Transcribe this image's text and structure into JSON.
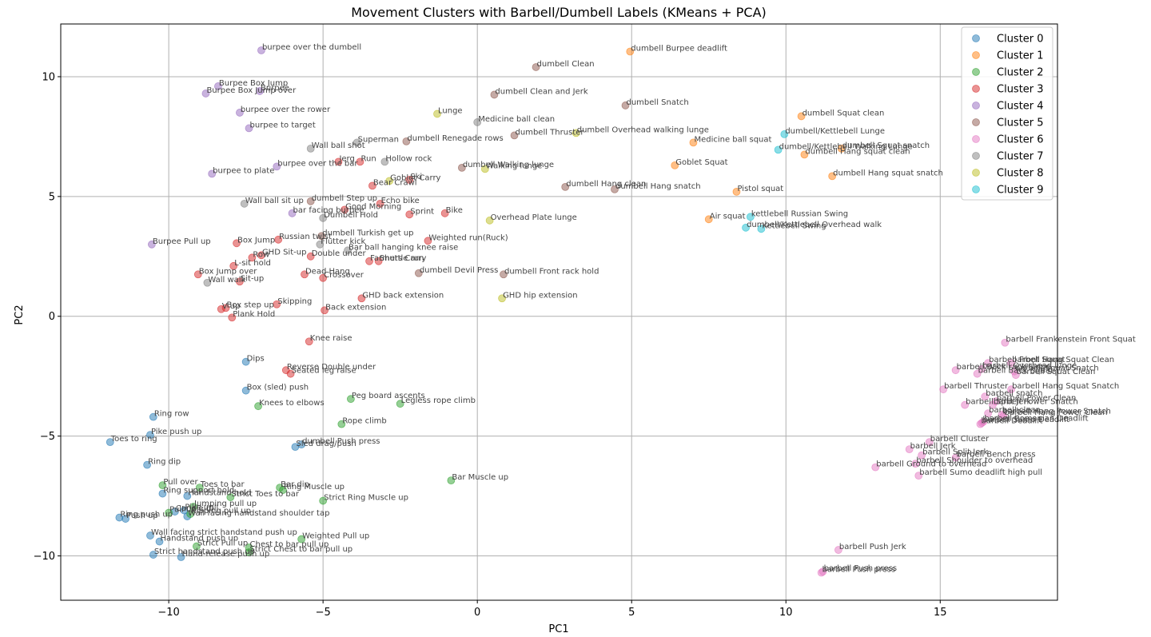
{
  "chart_data": {
    "type": "scatter",
    "title": "Movement Clusters with Barbell/Dumbell Labels (KMeans + PCA)",
    "xlabel": "PC1",
    "ylabel": "PC2",
    "xlim": [
      -13.5,
      18.8
    ],
    "ylim": [
      -11.85,
      12.2
    ],
    "xticks": [
      -10,
      -5,
      0,
      5,
      10,
      15
    ],
    "yticks": [
      -10,
      -5,
      0,
      5,
      10
    ],
    "grid": true,
    "legend_position": "top-right",
    "series": [
      {
        "name": "Cluster 0",
        "color": "#1f77b4",
        "points": [
          {
            "x": -7.5,
            "y": -1.9,
            "label": "Dips"
          },
          {
            "x": -7.5,
            "y": -3.1,
            "label": "Box (sled) push"
          },
          {
            "x": -10.5,
            "y": -4.2,
            "label": "Ring row"
          },
          {
            "x": -10.6,
            "y": -4.95,
            "label": "Pike push up"
          },
          {
            "x": -11.9,
            "y": -5.25,
            "label": "Toes to ring"
          },
          {
            "x": -10.7,
            "y": -6.2,
            "label": "Ring dip"
          },
          {
            "x": -10.2,
            "y": -7.4,
            "label": "Ring support hold"
          },
          {
            "x": -9.4,
            "y": -7.5,
            "label": "Handstand hold"
          },
          {
            "x": -11.6,
            "y": -8.4,
            "label": "Ring push up"
          },
          {
            "x": -11.4,
            "y": -8.45,
            "label": "Push up"
          },
          {
            "x": -9.5,
            "y": -8.1,
            "label": "Pike up"
          },
          {
            "x": -9.8,
            "y": -8.15,
            "label": "Candle roll"
          },
          {
            "x": -9.4,
            "y": -8.35,
            "label": "Wall facing handstand shoulder tap"
          },
          {
            "x": -10.6,
            "y": -9.15,
            "label": "Wall facing strict handstand push up"
          },
          {
            "x": -10.3,
            "y": -9.4,
            "label": "Handstand push up"
          },
          {
            "x": -10.5,
            "y": -9.95,
            "label": "Strict handstand push up"
          },
          {
            "x": -9.6,
            "y": -10.05,
            "label": "Hand-release push up"
          },
          {
            "x": -5.9,
            "y": -5.45,
            "label": "Sled drag/push"
          },
          {
            "x": -5.7,
            "y": -5.35,
            "label": "dumbell Push press"
          }
        ]
      },
      {
        "name": "Cluster 1",
        "color": "#ff7f0e",
        "points": [
          {
            "x": 4.95,
            "y": 11.05,
            "label": "dumbell Burpee deadlift"
          },
          {
            "x": 10.5,
            "y": 8.35,
            "label": "dumbell Squat clean"
          },
          {
            "x": 7.0,
            "y": 7.25,
            "label": "Medicine ball squat"
          },
          {
            "x": 6.4,
            "y": 6.3,
            "label": "Goblet Squat"
          },
          {
            "x": 11.8,
            "y": 7.0,
            "label": "dumbell Squat snatch"
          },
          {
            "x": 10.6,
            "y": 6.75,
            "label": "dumbell Hang squat clean"
          },
          {
            "x": 11.5,
            "y": 5.85,
            "label": "dumbell Hang squat snatch"
          },
          {
            "x": 8.4,
            "y": 5.2,
            "label": "Pistol squat"
          },
          {
            "x": 7.5,
            "y": 4.05,
            "label": "Air squat"
          }
        ]
      },
      {
        "name": "Cluster 2",
        "color": "#2ca02c",
        "points": [
          {
            "x": -7.1,
            "y": -3.75,
            "label": "Knees to elbows"
          },
          {
            "x": -4.1,
            "y": -3.45,
            "label": "Peg board ascents"
          },
          {
            "x": -2.5,
            "y": -3.65,
            "label": "Legless rope climb"
          },
          {
            "x": -4.4,
            "y": -4.5,
            "label": "Rope climb"
          },
          {
            "x": -0.85,
            "y": -6.85,
            "label": "Bar Muscle up"
          },
          {
            "x": -10.2,
            "y": -7.05,
            "label": "Pull over"
          },
          {
            "x": -9.0,
            "y": -7.15,
            "label": "Toes to bar"
          },
          {
            "x": -8.0,
            "y": -7.55,
            "label": "Strict Toes to bar"
          },
          {
            "x": -6.4,
            "y": -7.15,
            "label": "Bar dip"
          },
          {
            "x": -6.3,
            "y": -7.25,
            "label": "Ring Muscle up"
          },
          {
            "x": -5.0,
            "y": -7.7,
            "label": "Strict Ring Muscle up"
          },
          {
            "x": -9.2,
            "y": -7.95,
            "label": "Jumping pull up"
          },
          {
            "x": -10.0,
            "y": -8.2,
            "label": "Pull up"
          },
          {
            "x": -9.3,
            "y": -8.25,
            "label": "Kipping pull up"
          },
          {
            "x": -5.7,
            "y": -9.3,
            "label": "Weighted Pull up"
          },
          {
            "x": -9.1,
            "y": -9.6,
            "label": "Strict Pull up"
          },
          {
            "x": -7.4,
            "y": -9.65,
            "label": "Chest to bar pull up"
          },
          {
            "x": -7.4,
            "y": -9.85,
            "label": "Strict Chest to bar pull up"
          }
        ]
      },
      {
        "name": "Cluster 3",
        "color": "#d62728",
        "points": [
          {
            "x": -4.5,
            "y": 6.45,
            "label": "Jerg"
          },
          {
            "x": -3.8,
            "y": 6.45,
            "label": "Run"
          },
          {
            "x": -3.4,
            "y": 5.45,
            "label": "Bear Crawl"
          },
          {
            "x": -2.2,
            "y": 5.7,
            "label": "Ski"
          },
          {
            "x": -3.15,
            "y": 4.7,
            "label": "Echo bike"
          },
          {
            "x": -4.3,
            "y": 4.45,
            "label": "Good Morning"
          },
          {
            "x": -2.2,
            "y": 4.25,
            "label": "Sprint"
          },
          {
            "x": -1.05,
            "y": 4.3,
            "label": "Bike"
          },
          {
            "x": -6.45,
            "y": 3.2,
            "label": "Russian twist"
          },
          {
            "x": -1.6,
            "y": 3.15,
            "label": "Weighted run(Ruck)"
          },
          {
            "x": -7.8,
            "y": 3.05,
            "label": "Box Jump"
          },
          {
            "x": -7.0,
            "y": 2.55,
            "label": "GHD Sit-up"
          },
          {
            "x": -7.3,
            "y": 2.45,
            "label": "Row"
          },
          {
            "x": -5.4,
            "y": 2.5,
            "label": "Double under"
          },
          {
            "x": -3.5,
            "y": 2.3,
            "label": "Farmers Carry"
          },
          {
            "x": -3.2,
            "y": 2.3,
            "label": "Shuttle run"
          },
          {
            "x": -7.9,
            "y": 2.1,
            "label": "L-sit hold"
          },
          {
            "x": -9.05,
            "y": 1.75,
            "label": "Box Jump over"
          },
          {
            "x": -5.6,
            "y": 1.75,
            "label": "Dead Hang"
          },
          {
            "x": -5.0,
            "y": 1.6,
            "label": "Crossover"
          },
          {
            "x": -7.7,
            "y": 1.45,
            "label": "Sit-up"
          },
          {
            "x": -3.75,
            "y": 0.75,
            "label": "GHD back extension"
          },
          {
            "x": -6.5,
            "y": 0.5,
            "label": "Skipping"
          },
          {
            "x": -8.3,
            "y": 0.3,
            "label": "V up"
          },
          {
            "x": -8.15,
            "y": 0.35,
            "label": "Box step up"
          },
          {
            "x": -4.95,
            "y": 0.25,
            "label": "Back extension"
          },
          {
            "x": -7.95,
            "y": -0.05,
            "label": "Plank Hold"
          },
          {
            "x": -5.45,
            "y": -1.05,
            "label": "Knee raise"
          },
          {
            "x": -6.2,
            "y": -2.25,
            "label": "Reverse Double under"
          },
          {
            "x": -6.05,
            "y": -2.4,
            "label": "Seated leg raise"
          }
        ]
      },
      {
        "name": "Cluster 4",
        "color": "#9467bd",
        "points": [
          {
            "x": -7.0,
            "y": 11.1,
            "label": "burpee over the dumbell"
          },
          {
            "x": -8.4,
            "y": 9.6,
            "label": "Burpee Box Jump"
          },
          {
            "x": -7.05,
            "y": 9.4,
            "label": "Burpee"
          },
          {
            "x": -8.8,
            "y": 9.3,
            "label": "Burpee Box Jump over"
          },
          {
            "x": -7.7,
            "y": 8.5,
            "label": "burpee over the rower"
          },
          {
            "x": -7.4,
            "y": 7.85,
            "label": "burpee to target"
          },
          {
            "x": -6.5,
            "y": 6.25,
            "label": "burpee over the bar"
          },
          {
            "x": -8.6,
            "y": 5.95,
            "label": "burpee to plate"
          },
          {
            "x": -6.0,
            "y": 4.3,
            "label": "bar facing burpee"
          },
          {
            "x": -10.55,
            "y": 3.0,
            "label": "Burpee Pull up"
          }
        ]
      },
      {
        "name": "Cluster 5",
        "color": "#8c564b",
        "points": [
          {
            "x": 1.9,
            "y": 10.4,
            "label": "dumbell Clean"
          },
          {
            "x": 0.55,
            "y": 9.25,
            "label": "dumbell Clean and Jerk"
          },
          {
            "x": 4.8,
            "y": 8.8,
            "label": "dumbell Snatch"
          },
          {
            "x": 1.2,
            "y": 7.55,
            "label": "dumbell Thruster"
          },
          {
            "x": -2.3,
            "y": 7.3,
            "label": "dumbell Renegade rows"
          },
          {
            "x": -0.5,
            "y": 6.2,
            "label": "dumbell Walking lunge"
          },
          {
            "x": 2.85,
            "y": 5.4,
            "label": "dumbell Hang clean"
          },
          {
            "x": 4.45,
            "y": 5.3,
            "label": "dumbell Hang snatch"
          },
          {
            "x": -5.4,
            "y": 4.8,
            "label": "dumbell Step up"
          },
          {
            "x": -5.05,
            "y": 3.35,
            "label": "dumbell Turkish get up"
          },
          {
            "x": -1.9,
            "y": 1.8,
            "label": "dumbell Devil Press"
          },
          {
            "x": 0.85,
            "y": 1.75,
            "label": "dumbell Front rack hold"
          }
        ]
      },
      {
        "name": "Cluster 6",
        "color": "#e377c2",
        "points": [
          {
            "x": 17.1,
            "y": -1.1,
            "label": "barbell Frankenstein Front Squat"
          },
          {
            "x": 16.55,
            "y": -1.95,
            "label": "barbell Front Squat"
          },
          {
            "x": 17.3,
            "y": -1.95,
            "label": "barbell Hang Squat Clean"
          },
          {
            "x": 15.5,
            "y": -2.25,
            "label": "barbell Back rack lunge"
          },
          {
            "x": 16.35,
            "y": -2.2,
            "label": "barbell Overhead lunge"
          },
          {
            "x": 16.2,
            "y": -2.4,
            "label": "barbell Back Squat"
          },
          {
            "x": 17.4,
            "y": -2.3,
            "label": "barbell Squat Snatch"
          },
          {
            "x": 17.45,
            "y": -2.45,
            "label": "barbell Squat Clean"
          },
          {
            "x": 15.1,
            "y": -3.05,
            "label": "barbell Thruster"
          },
          {
            "x": 17.3,
            "y": -3.05,
            "label": "barbell Hang Squat Snatch"
          },
          {
            "x": 16.45,
            "y": -3.35,
            "label": "barbell snatch"
          },
          {
            "x": 16.8,
            "y": -3.55,
            "label": "barbell Power Clean"
          },
          {
            "x": 15.8,
            "y": -3.7,
            "label": "barbell Split Jerk"
          },
          {
            "x": 16.7,
            "y": -3.7,
            "label": "barbell Power Snatch"
          },
          {
            "x": 16.55,
            "y": -4.05,
            "label": "barbell clean"
          },
          {
            "x": 17.0,
            "y": -4.1,
            "label": "barbell Hang Power Snatch"
          },
          {
            "x": 17.05,
            "y": -4.15,
            "label": "barbell Hang Power Clean"
          },
          {
            "x": 16.35,
            "y": -4.45,
            "label": "barbell Sumo Deadlift"
          },
          {
            "x": 16.4,
            "y": -4.4,
            "label": "barbell Romanian Deadlift"
          },
          {
            "x": 16.3,
            "y": -4.5,
            "label": "barbell Deadlift"
          },
          {
            "x": 14.65,
            "y": -5.25,
            "label": "barbell Cluster"
          },
          {
            "x": 14.0,
            "y": -5.55,
            "label": "barbell Jerk"
          },
          {
            "x": 14.4,
            "y": -5.8,
            "label": "barbell Split Jerk"
          },
          {
            "x": 15.5,
            "y": -5.9,
            "label": "barbell Bench press"
          },
          {
            "x": 14.2,
            "y": -6.15,
            "label": "barbell Shoulder to overhead"
          },
          {
            "x": 12.9,
            "y": -6.3,
            "label": "barbell Ground to overhead"
          },
          {
            "x": 14.3,
            "y": -6.65,
            "label": "barbell Sumo deadlift high pull"
          },
          {
            "x": 11.7,
            "y": -9.75,
            "label": "barbell Push Jerk"
          },
          {
            "x": 11.15,
            "y": -10.7,
            "label": "barbell Push press"
          },
          {
            "x": 11.2,
            "y": -10.65,
            "label": "barbell Push press"
          }
        ]
      },
      {
        "name": "Cluster 7",
        "color": "#7f7f7f",
        "points": [
          {
            "x": 0.0,
            "y": 8.1,
            "label": "Medicine ball clean"
          },
          {
            "x": -3.9,
            "y": 7.25,
            "label": "Superman"
          },
          {
            "x": -5.4,
            "y": 7.0,
            "label": "Wall ball shot"
          },
          {
            "x": -3.0,
            "y": 6.45,
            "label": "Hollow rock"
          },
          {
            "x": -7.55,
            "y": 4.7,
            "label": "Wall ball sit up"
          },
          {
            "x": -5.0,
            "y": 4.1,
            "label": "Dumbell Hold"
          },
          {
            "x": -5.1,
            "y": 3.0,
            "label": "Flutter kick"
          },
          {
            "x": -4.2,
            "y": 2.75,
            "label": "Bar ball hanging knee raise"
          },
          {
            "x": -8.75,
            "y": 1.4,
            "label": "Wall walk"
          }
        ]
      },
      {
        "name": "Cluster 8",
        "color": "#bcbd22",
        "points": [
          {
            "x": -1.3,
            "y": 8.45,
            "label": "Lunge"
          },
          {
            "x": 3.2,
            "y": 7.65,
            "label": "dumbell Overhead walking lunge"
          },
          {
            "x": -2.85,
            "y": 5.65,
            "label": "Goblet Carry"
          },
          {
            "x": 0.25,
            "y": 6.15,
            "label": "Walking lunge"
          },
          {
            "x": 0.4,
            "y": 4.0,
            "label": "Overhead Plate lunge"
          },
          {
            "x": 0.8,
            "y": 0.75,
            "label": "GHD hip extension"
          }
        ]
      },
      {
        "name": "Cluster 9",
        "color": "#17becf",
        "points": [
          {
            "x": 9.95,
            "y": 7.6,
            "label": "dumbell/Kettlebell Lunge"
          },
          {
            "x": 9.75,
            "y": 6.95,
            "label": "dumbell/Kettlebell Walking Lunge"
          },
          {
            "x": 8.85,
            "y": 4.15,
            "label": "kettlebell Russian Swing"
          },
          {
            "x": 8.7,
            "y": 3.7,
            "label": "dumbell/Kettlebell Overhead walk"
          },
          {
            "x": 9.2,
            "y": 3.65,
            "label": "Kettlebell Swing"
          }
        ]
      }
    ]
  }
}
